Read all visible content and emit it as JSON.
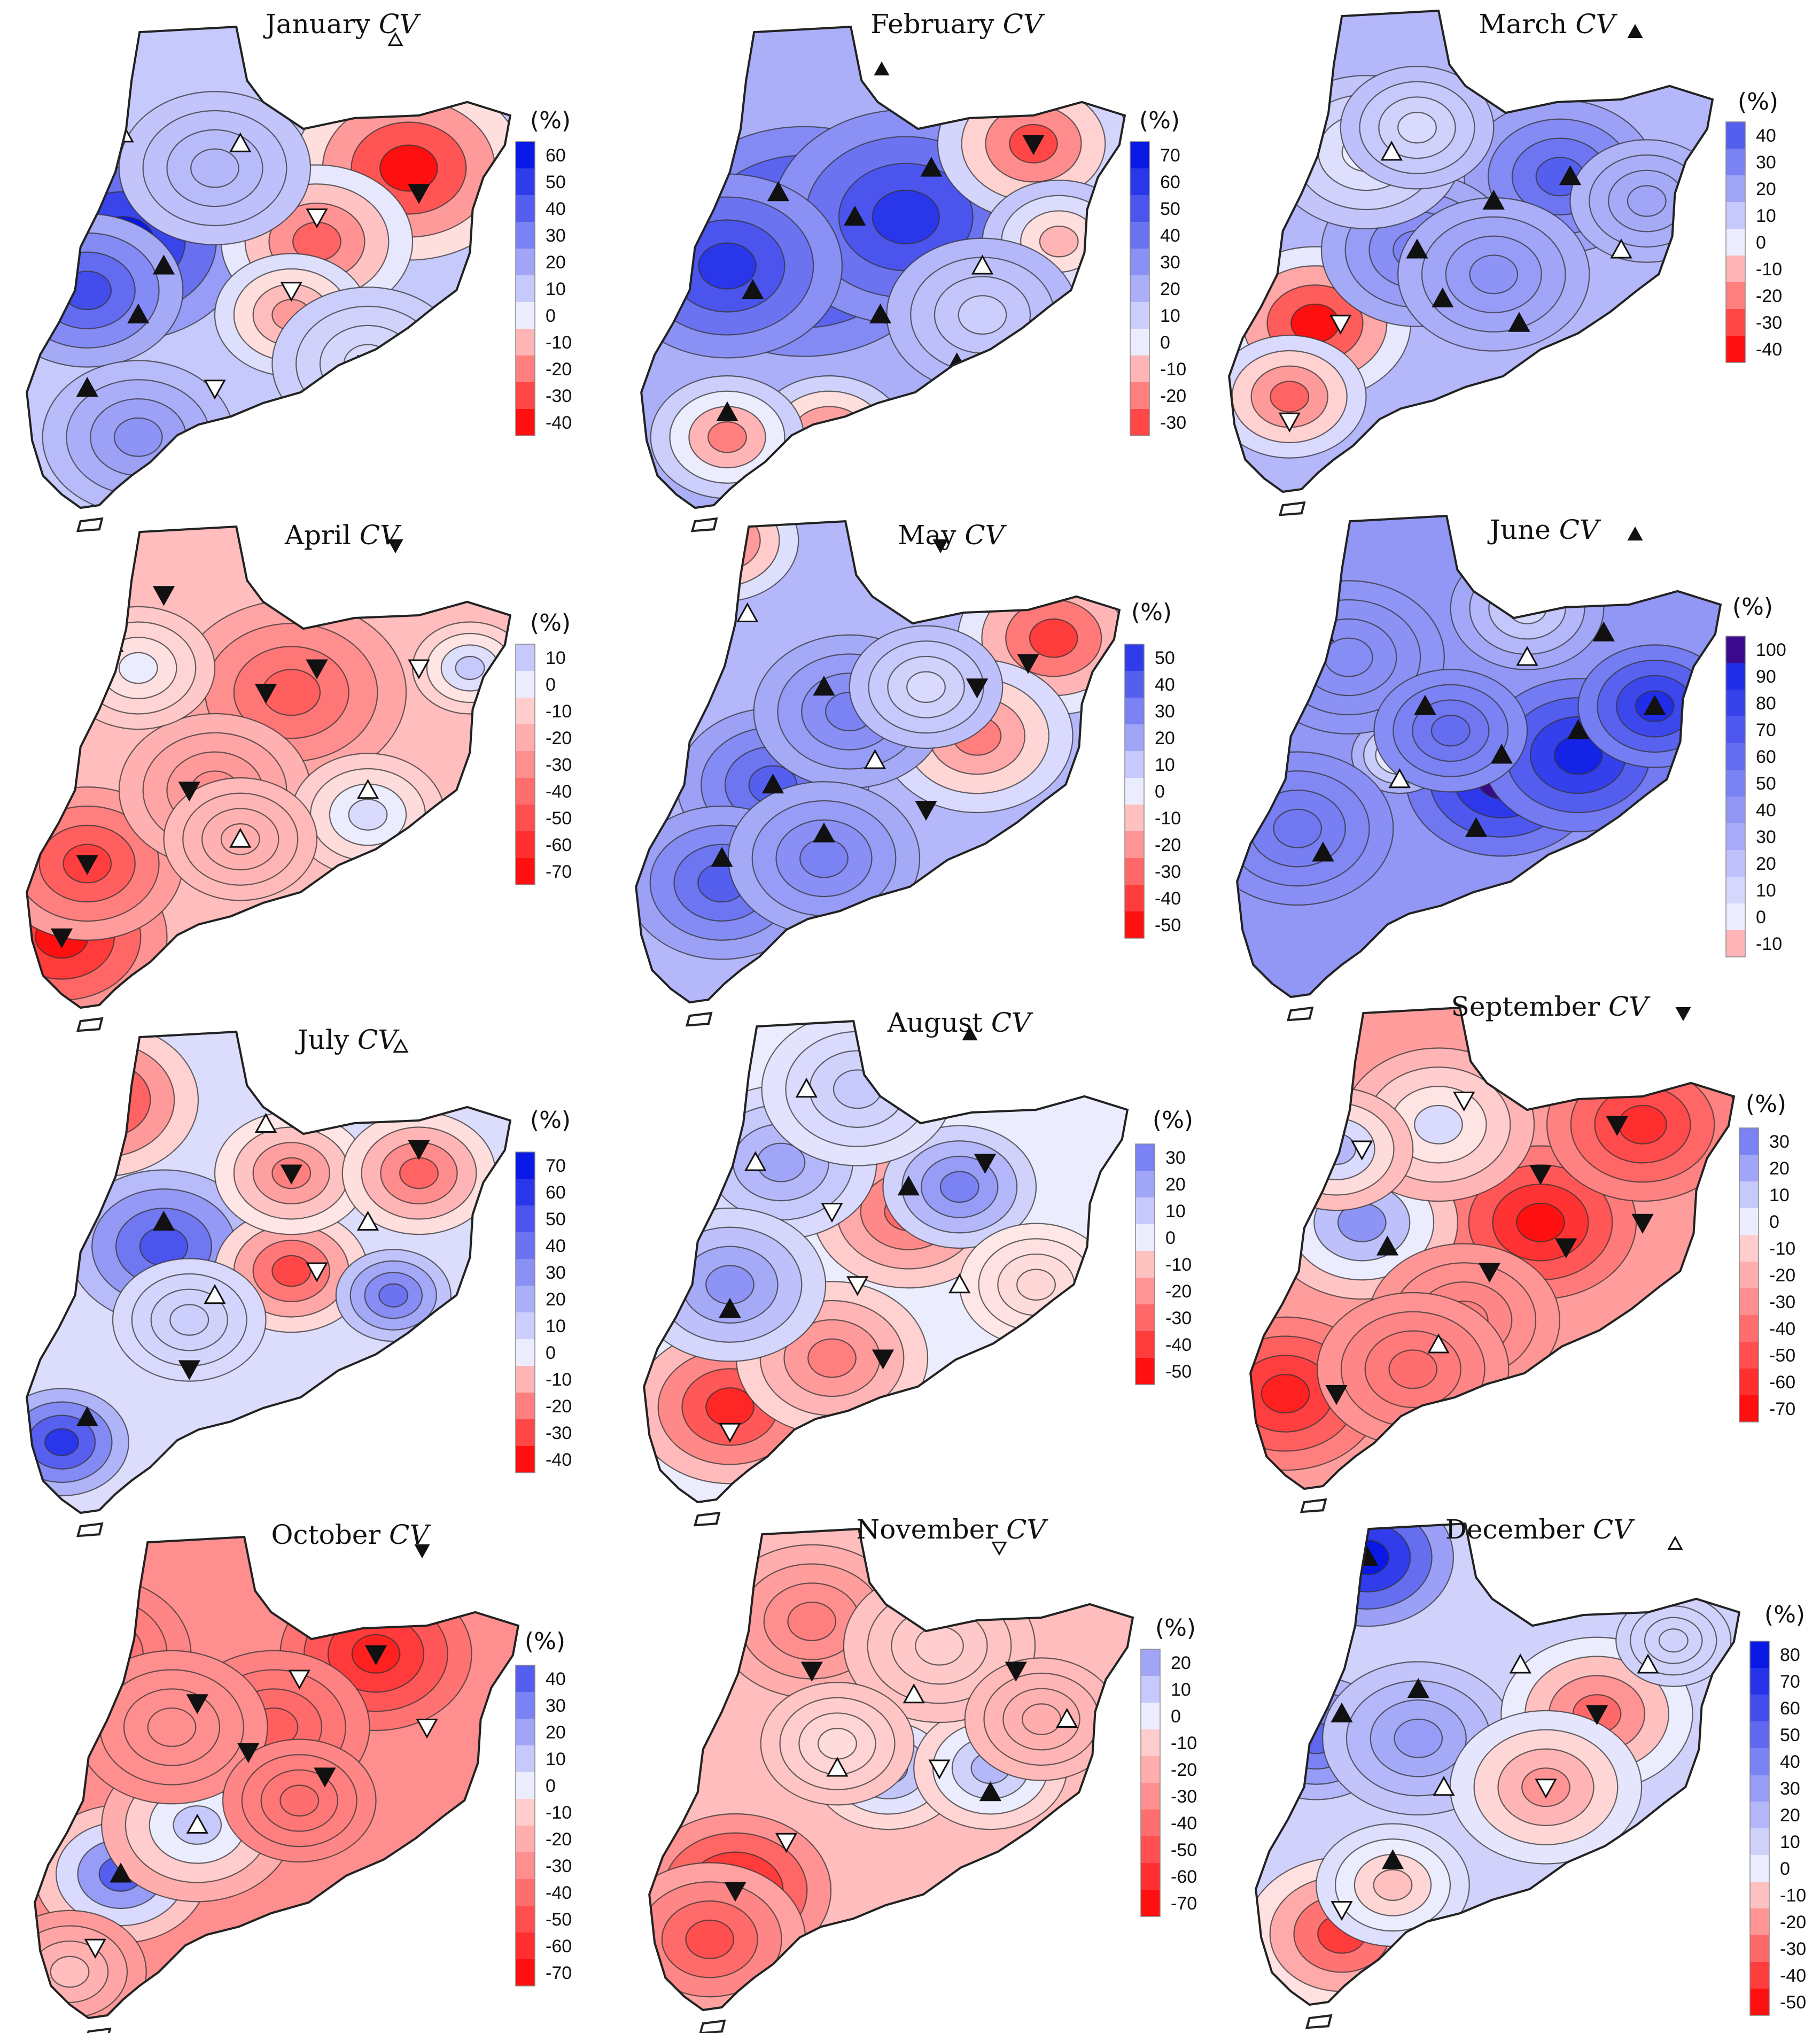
{
  "figure": {
    "variable_label": "CV",
    "unit_label": "(%)",
    "colors": {
      "neg_base": "#ffecec",
      "neg_max": "#ff1010",
      "pos_base": "#ececff",
      "pos_max": "#0a18e6",
      "pos_extreme": "#3a0a8c",
      "outline": "#222222"
    }
  },
  "panels": [
    {
      "month": "January",
      "legend_ticks": [
        60,
        50,
        40,
        30,
        20,
        10,
        0,
        -10,
        -20,
        -30,
        -40
      ],
      "corner_marker": "up-open"
    },
    {
      "month": "February",
      "legend_ticks": [
        70,
        60,
        50,
        40,
        30,
        20,
        10,
        0,
        -10,
        -20,
        -30
      ],
      "corner_marker": "up-filled"
    },
    {
      "month": "March",
      "legend_ticks": [
        40,
        30,
        20,
        10,
        0,
        -10,
        -20,
        -30,
        -40
      ],
      "corner_marker": "up-filled"
    },
    {
      "month": "April",
      "legend_ticks": [
        10,
        0,
        -10,
        -20,
        -30,
        -40,
        -50,
        -60,
        -70
      ],
      "corner_marker": "down-filled"
    },
    {
      "month": "May",
      "legend_ticks": [
        50,
        40,
        30,
        20,
        10,
        0,
        -10,
        -20,
        -30,
        -40,
        -50
      ],
      "corner_marker": "down-filled"
    },
    {
      "month": "June",
      "legend_ticks": [
        100,
        90,
        80,
        70,
        60,
        50,
        40,
        30,
        20,
        10,
        0,
        -10
      ],
      "corner_marker": "up-filled"
    },
    {
      "month": "July",
      "legend_ticks": [
        70,
        60,
        50,
        40,
        30,
        20,
        10,
        0,
        -10,
        -20,
        -30,
        -40
      ],
      "corner_marker": "up-open"
    },
    {
      "month": "August",
      "legend_ticks": [
        30,
        20,
        10,
        0,
        -10,
        -20,
        -30,
        -40,
        -50
      ],
      "corner_marker": "up-filled"
    },
    {
      "month": "September",
      "legend_ticks": [
        30,
        20,
        10,
        0,
        -10,
        -20,
        -30,
        -40,
        -50,
        -60,
        -70
      ],
      "corner_marker": "down-filled"
    },
    {
      "month": "October",
      "legend_ticks": [
        40,
        30,
        20,
        10,
        0,
        -10,
        -20,
        -30,
        -40,
        -50,
        -60,
        -70
      ],
      "corner_marker": "down-filled"
    },
    {
      "month": "November",
      "legend_ticks": [
        20,
        10,
        0,
        -10,
        -20,
        -30,
        -40,
        -50,
        -60,
        -70
      ],
      "corner_marker": "down-open"
    },
    {
      "month": "December",
      "legend_ticks": [
        80,
        70,
        60,
        50,
        40,
        30,
        20,
        10,
        0,
        -10,
        -20,
        -30,
        -40,
        -50
      ],
      "corner_marker": "up-open"
    }
  ],
  "fields": [
    {
      "bg": 10,
      "blobs": [
        [
          0.22,
          0.45,
          60,
          0.13
        ],
        [
          0.15,
          0.55,
          45,
          0.1
        ],
        [
          0.78,
          0.3,
          -40,
          0.12
        ],
        [
          0.6,
          0.45,
          -25,
          0.1
        ],
        [
          0.55,
          0.6,
          -15,
          0.08
        ],
        [
          0.4,
          0.3,
          15,
          0.1
        ],
        [
          0.7,
          0.7,
          5,
          0.1
        ],
        [
          0.25,
          0.85,
          25,
          0.1
        ]
      ]
    },
    {
      "bg": 20,
      "blobs": [
        [
          0.35,
          0.45,
          70,
          0.15
        ],
        [
          0.55,
          0.4,
          60,
          0.14
        ],
        [
          0.2,
          0.5,
          60,
          0.12
        ],
        [
          0.8,
          0.25,
          -30,
          0.1
        ],
        [
          0.85,
          0.45,
          -10,
          0.08
        ],
        [
          0.4,
          0.85,
          -25,
          0.08
        ],
        [
          0.2,
          0.85,
          -20,
          0.08
        ],
        [
          0.7,
          0.6,
          10,
          0.1
        ]
      ]
    },
    {
      "bg": 15,
      "blobs": [
        [
          0.2,
          0.65,
          -40,
          0.1
        ],
        [
          0.15,
          0.8,
          -25,
          0.08
        ],
        [
          0.68,
          0.35,
          40,
          0.1
        ],
        [
          0.4,
          0.5,
          30,
          0.1
        ],
        [
          0.55,
          0.55,
          25,
          0.1
        ],
        [
          0.3,
          0.3,
          0,
          0.1
        ],
        [
          0.85,
          0.4,
          20,
          0.08
        ],
        [
          0.4,
          0.25,
          5,
          0.08
        ]
      ]
    },
    {
      "bg": -15,
      "blobs": [
        [
          0.1,
          0.85,
          -70,
          0.11
        ],
        [
          0.15,
          0.7,
          -55,
          0.1
        ],
        [
          0.55,
          0.35,
          -45,
          0.12
        ],
        [
          0.4,
          0.55,
          -30,
          0.1
        ],
        [
          0.25,
          0.3,
          0,
          0.08
        ],
        [
          0.7,
          0.6,
          5,
          0.08
        ],
        [
          0.9,
          0.3,
          10,
          0.06
        ],
        [
          0.45,
          0.65,
          -20,
          0.08
        ]
      ]
    },
    {
      "bg": 15,
      "blobs": [
        [
          0.85,
          0.25,
          -40,
          0.1
        ],
        [
          0.7,
          0.45,
          -25,
          0.1
        ],
        [
          0.2,
          0.05,
          -30,
          0.08
        ],
        [
          0.3,
          0.55,
          40,
          0.1
        ],
        [
          0.2,
          0.75,
          40,
          0.1
        ],
        [
          0.45,
          0.4,
          30,
          0.1
        ],
        [
          0.6,
          0.35,
          5,
          0.08
        ],
        [
          0.4,
          0.7,
          30,
          0.1
        ]
      ]
    },
    {
      "bg": 40,
      "blobs": [
        [
          0.55,
          0.55,
          100,
          0.1
        ],
        [
          0.7,
          0.5,
          95,
          0.1
        ],
        [
          0.85,
          0.4,
          90,
          0.08
        ],
        [
          0.35,
          0.5,
          -10,
          0.05
        ],
        [
          0.6,
          0.2,
          10,
          0.08
        ],
        [
          0.15,
          0.65,
          55,
          0.1
        ],
        [
          0.25,
          0.3,
          45,
          0.1
        ],
        [
          0.45,
          0.45,
          60,
          0.08
        ]
      ]
    },
    {
      "bg": 5,
      "blobs": [
        [
          0.18,
          0.15,
          -35,
          0.1
        ],
        [
          0.3,
          0.45,
          50,
          0.1
        ],
        [
          0.1,
          0.85,
          60,
          0.07
        ],
        [
          0.55,
          0.5,
          -30,
          0.08
        ],
        [
          0.55,
          0.3,
          -20,
          0.08
        ],
        [
          0.8,
          0.3,
          -25,
          0.08
        ],
        [
          0.75,
          0.55,
          40,
          0.06
        ],
        [
          0.35,
          0.6,
          10,
          0.08
        ]
      ]
    },
    {
      "bg": 0,
      "blobs": [
        [
          0.2,
          0.8,
          -45,
          0.1
        ],
        [
          0.4,
          0.7,
          -25,
          0.1
        ],
        [
          0.55,
          0.4,
          -30,
          0.1
        ],
        [
          0.3,
          0.3,
          20,
          0.1
        ],
        [
          0.2,
          0.55,
          25,
          0.1
        ],
        [
          0.65,
          0.35,
          30,
          0.08
        ],
        [
          0.45,
          0.15,
          10,
          0.1
        ],
        [
          0.8,
          0.55,
          -5,
          0.08
        ]
      ]
    },
    {
      "bg": -25,
      "blobs": [
        [
          0.6,
          0.45,
          -70,
          0.1
        ],
        [
          0.8,
          0.25,
          -60,
          0.1
        ],
        [
          0.1,
          0.8,
          -65,
          0.1
        ],
        [
          0.25,
          0.45,
          25,
          0.1
        ],
        [
          0.4,
          0.25,
          5,
          0.1
        ],
        [
          0.45,
          0.65,
          -35,
          0.1
        ],
        [
          0.2,
          0.3,
          15,
          0.08
        ],
        [
          0.35,
          0.75,
          -40,
          0.1
        ]
      ]
    },
    {
      "bg": -30,
      "blobs": [
        [
          0.2,
          0.7,
          40,
          0.09
        ],
        [
          0.35,
          0.6,
          10,
          0.1
        ],
        [
          0.7,
          0.25,
          -65,
          0.1
        ],
        [
          0.5,
          0.4,
          -45,
          0.1
        ],
        [
          0.15,
          0.25,
          -40,
          0.1
        ],
        [
          0.3,
          0.4,
          -30,
          0.1
        ],
        [
          0.55,
          0.55,
          -40,
          0.08
        ],
        [
          0.1,
          0.9,
          -15,
          0.08
        ]
      ]
    },
    {
      "bg": -15,
      "blobs": [
        [
          0.2,
          0.75,
          -70,
          0.1
        ],
        [
          0.15,
          0.85,
          -50,
          0.1
        ],
        [
          0.5,
          0.5,
          20,
          0.08
        ],
        [
          0.7,
          0.5,
          15,
          0.08
        ],
        [
          0.35,
          0.2,
          -35,
          0.1
        ],
        [
          0.6,
          0.25,
          -10,
          0.1
        ],
        [
          0.8,
          0.4,
          -20,
          0.08
        ],
        [
          0.4,
          0.45,
          -5,
          0.08
        ]
      ]
    },
    {
      "bg": 10,
      "blobs": [
        [
          0.25,
          0.08,
          85,
          0.09
        ],
        [
          0.15,
          0.45,
          50,
          0.08
        ],
        [
          0.35,
          0.45,
          30,
          0.1
        ],
        [
          0.7,
          0.4,
          -30,
          0.1
        ],
        [
          0.6,
          0.55,
          -20,
          0.1
        ],
        [
          0.2,
          0.85,
          -40,
          0.1
        ],
        [
          0.3,
          0.75,
          -10,
          0.08
        ],
        [
          0.85,
          0.25,
          10,
          0.06
        ]
      ]
    }
  ],
  "stations": [
    [
      [
        0.22,
        0.23,
        "uo"
      ],
      [
        0.3,
        0.5,
        "uf"
      ],
      [
        0.25,
        0.6,
        "uf"
      ],
      [
        0.6,
        0.4,
        "do"
      ],
      [
        0.8,
        0.35,
        "df"
      ],
      [
        0.55,
        0.55,
        "do"
      ],
      [
        0.7,
        0.7,
        "do"
      ],
      [
        0.15,
        0.75,
        "uf"
      ],
      [
        0.4,
        0.75,
        "do"
      ],
      [
        0.45,
        0.25,
        "uo"
      ]
    ],
    [
      [
        0.3,
        0.35,
        "uf"
      ],
      [
        0.45,
        0.4,
        "uf"
      ],
      [
        0.6,
        0.3,
        "uf"
      ],
      [
        0.25,
        0.55,
        "uf"
      ],
      [
        0.5,
        0.6,
        "uf"
      ],
      [
        0.8,
        0.25,
        "df"
      ],
      [
        0.7,
        0.5,
        "uo"
      ],
      [
        0.2,
        0.8,
        "uf"
      ],
      [
        0.4,
        0.85,
        "do"
      ],
      [
        0.65,
        0.7,
        "uf"
      ]
    ],
    [
      [
        0.2,
        0.2,
        "uo"
      ],
      [
        0.4,
        0.5,
        "uf"
      ],
      [
        0.55,
        0.4,
        "uf"
      ],
      [
        0.7,
        0.35,
        "uf"
      ],
      [
        0.25,
        0.65,
        "do"
      ],
      [
        0.45,
        0.6,
        "uf"
      ],
      [
        0.8,
        0.5,
        "uo"
      ],
      [
        0.6,
        0.65,
        "uf"
      ],
      [
        0.15,
        0.85,
        "do"
      ],
      [
        0.35,
        0.3,
        "uo"
      ]
    ],
    [
      [
        0.2,
        0.25,
        "uo"
      ],
      [
        0.5,
        0.35,
        "df"
      ],
      [
        0.6,
        0.3,
        "df"
      ],
      [
        0.35,
        0.55,
        "df"
      ],
      [
        0.15,
        0.7,
        "df"
      ],
      [
        0.1,
        0.85,
        "df"
      ],
      [
        0.7,
        0.55,
        "uo"
      ],
      [
        0.8,
        0.3,
        "do"
      ],
      [
        0.45,
        0.65,
        "uo"
      ],
      [
        0.3,
        0.15,
        "df"
      ]
    ],
    [
      [
        0.25,
        0.2,
        "uo"
      ],
      [
        0.4,
        0.35,
        "uf"
      ],
      [
        0.3,
        0.55,
        "uf"
      ],
      [
        0.7,
        0.35,
        "df"
      ],
      [
        0.8,
        0.3,
        "df"
      ],
      [
        0.5,
        0.5,
        "uo"
      ],
      [
        0.2,
        0.7,
        "uf"
      ],
      [
        0.6,
        0.6,
        "df"
      ],
      [
        0.4,
        0.65,
        "uf"
      ],
      [
        0.15,
        0.05,
        "df"
      ]
    ],
    [
      [
        0.2,
        0.25,
        "uo"
      ],
      [
        0.4,
        0.4,
        "uf"
      ],
      [
        0.55,
        0.5,
        "uf"
      ],
      [
        0.7,
        0.45,
        "uf"
      ],
      [
        0.85,
        0.4,
        "uf"
      ],
      [
        0.35,
        0.55,
        "uo"
      ],
      [
        0.2,
        0.7,
        "uf"
      ],
      [
        0.6,
        0.3,
        "uo"
      ],
      [
        0.75,
        0.25,
        "uf"
      ],
      [
        0.5,
        0.65,
        "uf"
      ]
    ],
    [
      [
        0.2,
        0.1,
        "do"
      ],
      [
        0.3,
        0.4,
        "uf"
      ],
      [
        0.55,
        0.3,
        "df"
      ],
      [
        0.8,
        0.25,
        "df"
      ],
      [
        0.4,
        0.55,
        "uo"
      ],
      [
        0.15,
        0.8,
        "uf"
      ],
      [
        0.6,
        0.5,
        "do"
      ],
      [
        0.7,
        0.4,
        "uo"
      ],
      [
        0.35,
        0.7,
        "df"
      ],
      [
        0.5,
        0.2,
        "uo"
      ]
    ],
    [
      [
        0.25,
        0.3,
        "uo"
      ],
      [
        0.4,
        0.4,
        "do"
      ],
      [
        0.55,
        0.35,
        "uf"
      ],
      [
        0.7,
        0.3,
        "df"
      ],
      [
        0.2,
        0.6,
        "uf"
      ],
      [
        0.45,
        0.55,
        "do"
      ],
      [
        0.65,
        0.55,
        "uo"
      ],
      [
        0.2,
        0.85,
        "do"
      ],
      [
        0.5,
        0.7,
        "df"
      ],
      [
        0.35,
        0.15,
        "uo"
      ]
    ],
    [
      [
        0.25,
        0.3,
        "do"
      ],
      [
        0.45,
        0.2,
        "do"
      ],
      [
        0.6,
        0.35,
        "df"
      ],
      [
        0.75,
        0.25,
        "df"
      ],
      [
        0.3,
        0.5,
        "uf"
      ],
      [
        0.5,
        0.55,
        "df"
      ],
      [
        0.65,
        0.5,
        "df"
      ],
      [
        0.2,
        0.8,
        "df"
      ],
      [
        0.4,
        0.7,
        "uo"
      ],
      [
        0.8,
        0.45,
        "df"
      ]
    ],
    [
      [
        0.2,
        0.15,
        "df"
      ],
      [
        0.35,
        0.35,
        "df"
      ],
      [
        0.55,
        0.3,
        "do"
      ],
      [
        0.7,
        0.25,
        "df"
      ],
      [
        0.2,
        0.7,
        "uf"
      ],
      [
        0.35,
        0.6,
        "uo"
      ],
      [
        0.6,
        0.5,
        "df"
      ],
      [
        0.45,
        0.45,
        "df"
      ],
      [
        0.15,
        0.85,
        "do"
      ],
      [
        0.8,
        0.4,
        "do"
      ]
    ],
    [
      [
        0.2,
        0.2,
        "do"
      ],
      [
        0.35,
        0.3,
        "df"
      ],
      [
        0.55,
        0.35,
        "uo"
      ],
      [
        0.75,
        0.3,
        "df"
      ],
      [
        0.2,
        0.75,
        "df"
      ],
      [
        0.4,
        0.5,
        "uo"
      ],
      [
        0.6,
        0.5,
        "do"
      ],
      [
        0.7,
        0.55,
        "uf"
      ],
      [
        0.3,
        0.65,
        "do"
      ],
      [
        0.85,
        0.4,
        "uo"
      ]
    ],
    [
      [
        0.25,
        0.08,
        "uf"
      ],
      [
        0.2,
        0.4,
        "uf"
      ],
      [
        0.35,
        0.35,
        "uf"
      ],
      [
        0.55,
        0.3,
        "uo"
      ],
      [
        0.7,
        0.4,
        "df"
      ],
      [
        0.4,
        0.55,
        "uo"
      ],
      [
        0.6,
        0.55,
        "do"
      ],
      [
        0.2,
        0.8,
        "do"
      ],
      [
        0.3,
        0.7,
        "uf"
      ],
      [
        0.8,
        0.3,
        "uo"
      ]
    ]
  ]
}
